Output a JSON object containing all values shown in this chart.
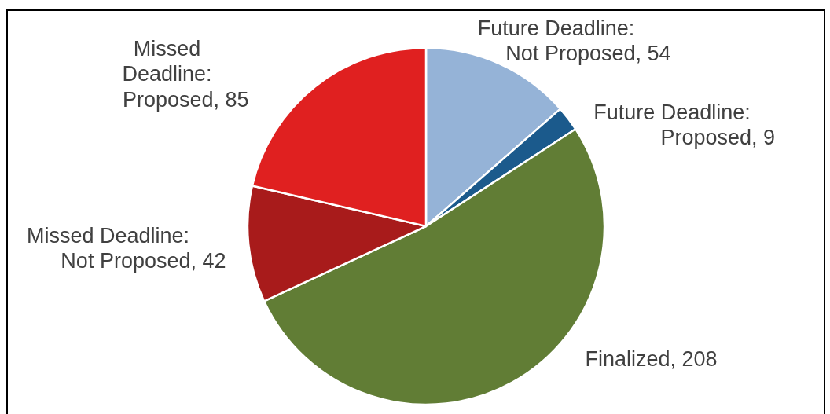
{
  "chart_data": {
    "type": "pie",
    "categories": [
      "Future Deadline: Not Proposed",
      "Future Deadline: Proposed",
      "Finalized",
      "Missed Deadline: Not Proposed",
      "Missed Deadline: Proposed"
    ],
    "values": [
      54,
      9,
      208,
      42,
      85
    ],
    "value_labels": [
      ", 54",
      ", 9",
      ", 208",
      ", 42",
      ", 85"
    ],
    "colors": [
      "#95b3d7",
      "#1b5a8c",
      "#617d35",
      "#a81b1b",
      "#e02020"
    ]
  }
}
